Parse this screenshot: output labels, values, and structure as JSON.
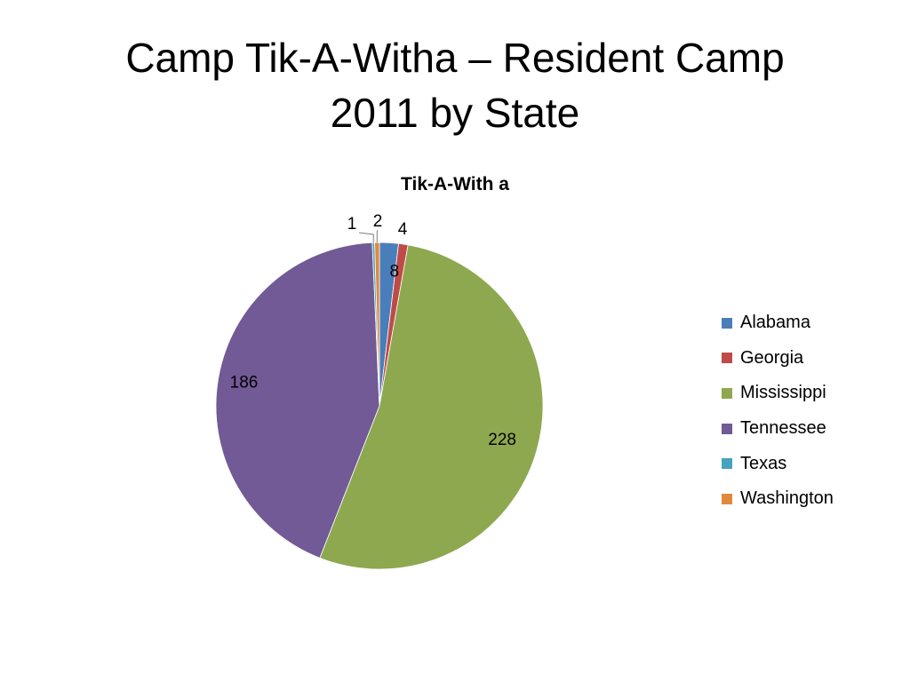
{
  "slide": {
    "title_line1": "Camp Tik-A-Witha – Resident Camp",
    "title_line2": "2011 by State"
  },
  "chart_data": {
    "type": "pie",
    "title": "Tik-A-With a",
    "categories": [
      "Alabama",
      "Georgia",
      "Mississippi",
      "Tennessee",
      "Texas",
      "Washington"
    ],
    "values": [
      8,
      4,
      228,
      186,
      1,
      2
    ],
    "labels": [
      "8",
      "4",
      "228",
      "186",
      "1",
      "2"
    ],
    "colors": [
      "#4a7ebb",
      "#be4b48",
      "#8ea84f",
      "#715a96",
      "#46a3bf",
      "#e0883c"
    ],
    "start_angle_deg": 0,
    "direction": "clockwise",
    "legend_position": "right"
  }
}
